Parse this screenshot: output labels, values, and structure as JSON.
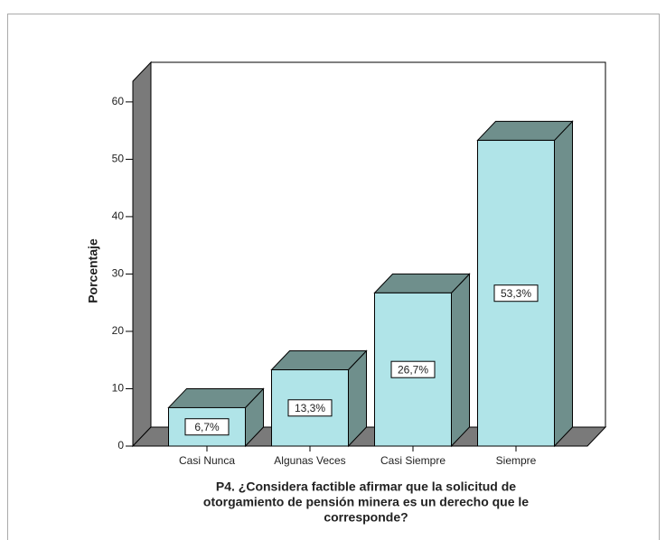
{
  "chart_data": {
    "type": "bar3d",
    "categories": [
      "Casi Nunca",
      "Algunas Veces",
      "Casi Siempre",
      "Siempre"
    ],
    "values": [
      6.7,
      13.3,
      26.7,
      53.3
    ],
    "value_labels": [
      "6,7%",
      "13,3%",
      "26,7%",
      "53,3%"
    ],
    "ylabel": "Porcentaje",
    "xlabel": [
      "P4. ¿Considera factible afirmar que la solicitud de",
      "otorgamiento de pensión minera es un derecho que le",
      "corresponde?"
    ],
    "color": "#b0e4e8",
    "shade_color": "#6f8f8c",
    "ylim": [
      0,
      63.6
    ],
    "yticks": [
      0,
      10,
      20,
      30,
      40,
      50,
      60
    ]
  }
}
